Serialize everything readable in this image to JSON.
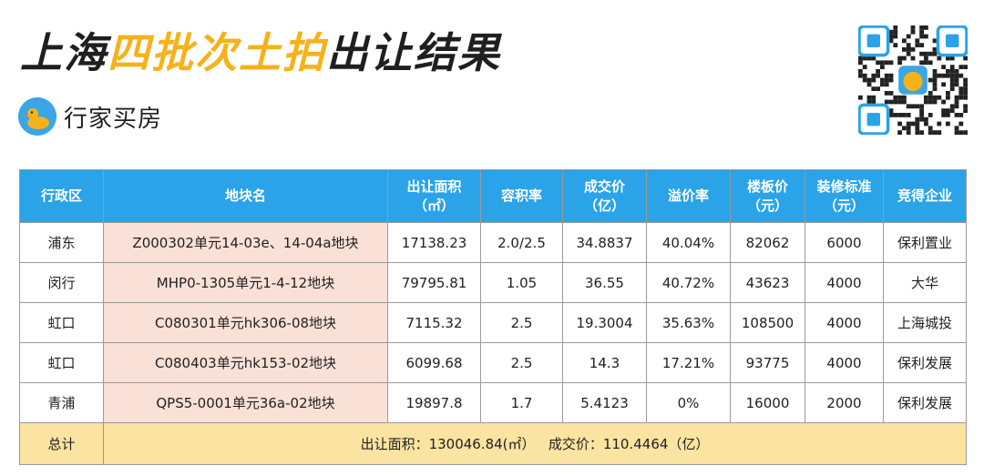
{
  "title": {
    "part1": "上海",
    "part2": "四批次土拍",
    "part3": "出让结果"
  },
  "brand": {
    "name": "行家买房",
    "logo_icon": "duck-logo-icon"
  },
  "colors": {
    "header_bg": "#2aa3e8",
    "plot_cell_bg": "#fae1d8",
    "total_row_bg": "#fbe3a1",
    "title_accent": "#f6b21a"
  },
  "table": {
    "headers": [
      {
        "line1": "行政区",
        "line2": ""
      },
      {
        "line1": "地块名",
        "line2": ""
      },
      {
        "line1": "出让面积",
        "line2": "（㎡）"
      },
      {
        "line1": "容积率",
        "line2": ""
      },
      {
        "line1": "成交价",
        "line2": "（亿）"
      },
      {
        "line1": "溢价率",
        "line2": ""
      },
      {
        "line1": "楼板价",
        "line2": "（元）"
      },
      {
        "line1": "装修标准",
        "line2": "（元）"
      },
      {
        "line1": "竞得企业",
        "line2": ""
      }
    ],
    "rows": [
      [
        "浦东",
        "Z000302单元14-03e、14-04a地块",
        "17138.23",
        "2.0/2.5",
        "34.8837",
        "40.04%",
        "82062",
        "6000",
        "保利置业"
      ],
      [
        "闵行",
        "MHP0-1305单元1-4-12地块",
        "79795.81",
        "1.05",
        "36.55",
        "40.72%",
        "43623",
        "4000",
        "大华"
      ],
      [
        "虹口",
        "C080301单元hk306-08地块",
        "7115.32",
        "2.5",
        "19.3004",
        "35.63%",
        "108500",
        "4000",
        "上海城投"
      ],
      [
        "虹口",
        "C080403单元hk153-02地块",
        "6099.68",
        "2.5",
        "14.3",
        "17.21%",
        "93775",
        "4000",
        "保利发展"
      ],
      [
        "青浦",
        "QPS5-0001单元36a-02地块",
        "19897.8",
        "1.7",
        "5.4123",
        "0%",
        "16000",
        "2000",
        "保利发展"
      ]
    ],
    "total": {
      "label": "总计",
      "summary": "出让面积：130046.84(㎡）   成交价：110.4464（亿）"
    }
  }
}
